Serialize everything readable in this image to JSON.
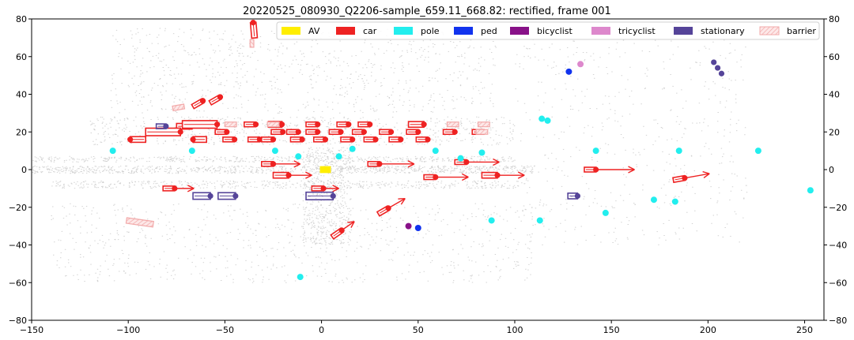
{
  "chart_data": {
    "type": "scatter",
    "title": "20220525_080930_Q2206-sample_659.11_668.82: rectified, frame 001",
    "xlabel": "",
    "ylabel": "",
    "xlim": [
      -150,
      260
    ],
    "ylim": [
      -80,
      80
    ],
    "xticks": [
      "−150",
      "−100",
      "−50",
      "0",
      "50",
      "100",
      "150",
      "200",
      "250"
    ],
    "yticks": [
      "80",
      "60",
      "40",
      "20",
      "0",
      "−20",
      "−40",
      "−60",
      "−80"
    ],
    "grid": false,
    "legend_position": "top-right",
    "colors": {
      "AV": "#ffee00",
      "car": "#ee2222",
      "pole": "#22eeee",
      "ped": "#1133ee",
      "bicyclist": "#881188",
      "tricyclist": "#dd88cc",
      "stationary": "#554499",
      "barrier": "#f2aaaa"
    },
    "legend": [
      {
        "name": "AV",
        "color": "#ffee00",
        "style": "solid"
      },
      {
        "name": "car",
        "color": "#ee2222",
        "style": "solid"
      },
      {
        "name": "pole",
        "color": "#22eeee",
        "style": "solid"
      },
      {
        "name": "ped",
        "color": "#1133ee",
        "style": "solid"
      },
      {
        "name": "bicyclist",
        "color": "#881188",
        "style": "solid"
      },
      {
        "name": "tricyclist",
        "color": "#dd88cc",
        "style": "solid"
      },
      {
        "name": "stationary",
        "color": "#554499",
        "style": "solid"
      },
      {
        "name": "barrier",
        "color": "#f2aaaa",
        "style": "hatched"
      }
    ],
    "series": [
      {
        "name": "AV",
        "boxes": [
          {
            "x": 2,
            "y": 0,
            "length": 5,
            "width": 3,
            "heading": 0
          }
        ]
      },
      {
        "name": "car",
        "boxes": [
          {
            "x": -35,
            "y": 74,
            "length": 8,
            "width": 3,
            "heading": 95,
            "arrow": 0
          },
          {
            "x": -55,
            "y": 37,
            "length": 6,
            "width": 2.5,
            "heading": 30,
            "arrow": 0
          },
          {
            "x": -64,
            "y": 35,
            "length": 6,
            "width": 2.5,
            "heading": 30,
            "arrow": 0
          },
          {
            "x": -71,
            "y": 23,
            "length": 8,
            "width": 3,
            "heading": 0,
            "arrow": 0
          },
          {
            "x": -63,
            "y": 24,
            "length": 18,
            "width": 4,
            "heading": 0,
            "arrow": 0
          },
          {
            "x": -82,
            "y": 20,
            "length": 18,
            "width": 4,
            "heading": 0,
            "arrow": 0
          },
          {
            "x": -95,
            "y": 16,
            "length": 8,
            "width": 3,
            "heading": 180,
            "arrow": 0
          },
          {
            "x": -63,
            "y": 16,
            "length": 7,
            "width": 3,
            "heading": 180,
            "arrow": 0
          },
          {
            "x": -48,
            "y": 16,
            "length": 6,
            "width": 2.5,
            "heading": 0,
            "arrow": 0
          },
          {
            "x": -52,
            "y": 20,
            "length": 6,
            "width": 2.5,
            "heading": 0,
            "arrow": 0
          },
          {
            "x": -37,
            "y": 24,
            "length": 6,
            "width": 2.5,
            "heading": 0,
            "arrow": 0
          },
          {
            "x": -35,
            "y": 16,
            "length": 6,
            "width": 2.5,
            "heading": 0,
            "arrow": 0
          },
          {
            "x": -24,
            "y": 24,
            "length": 7,
            "width": 3,
            "heading": 0,
            "arrow": 0
          },
          {
            "x": -23,
            "y": 20,
            "length": 6,
            "width": 2.5,
            "heading": 0,
            "arrow": 0
          },
          {
            "x": -28,
            "y": 16,
            "length": 6,
            "width": 2.5,
            "heading": 0,
            "arrow": 0
          },
          {
            "x": -15,
            "y": 20,
            "length": 6,
            "width": 2.5,
            "heading": 0,
            "arrow": 0
          },
          {
            "x": -13,
            "y": 16,
            "length": 6,
            "width": 2.5,
            "heading": 0,
            "arrow": 0
          },
          {
            "x": -5,
            "y": 20,
            "length": 6,
            "width": 2.5,
            "heading": 0,
            "arrow": 0
          },
          {
            "x": -1,
            "y": 16,
            "length": 6,
            "width": 2.5,
            "heading": 0,
            "arrow": 0
          },
          {
            "x": -5,
            "y": 24,
            "length": 6,
            "width": 2.5,
            "heading": 0,
            "arrow": 0
          },
          {
            "x": 7,
            "y": 20,
            "length": 6,
            "width": 2.5,
            "heading": 0,
            "arrow": 0
          },
          {
            "x": 11,
            "y": 24,
            "length": 6,
            "width": 2.5,
            "heading": 0,
            "arrow": 0
          },
          {
            "x": 13,
            "y": 16,
            "length": 6,
            "width": 2.5,
            "heading": 0,
            "arrow": 0
          },
          {
            "x": 19,
            "y": 20,
            "length": 6,
            "width": 2.5,
            "heading": 0,
            "arrow": 0
          },
          {
            "x": 22,
            "y": 24,
            "length": 6,
            "width": 2.5,
            "heading": 0,
            "arrow": 0
          },
          {
            "x": 25,
            "y": 16,
            "length": 6,
            "width": 2.5,
            "heading": 0,
            "arrow": 0
          },
          {
            "x": 33,
            "y": 20,
            "length": 6,
            "width": 2.5,
            "heading": 0,
            "arrow": 0
          },
          {
            "x": 38,
            "y": 16,
            "length": 6,
            "width": 2.5,
            "heading": 0,
            "arrow": 0
          },
          {
            "x": 47,
            "y": 20,
            "length": 6,
            "width": 2.5,
            "heading": 0,
            "arrow": 0
          },
          {
            "x": 49,
            "y": 24,
            "length": 8,
            "width": 3,
            "heading": 0,
            "arrow": 0
          },
          {
            "x": 52,
            "y": 16,
            "length": 6,
            "width": 2.5,
            "heading": 0,
            "arrow": 0
          },
          {
            "x": 66,
            "y": 20,
            "length": 6,
            "width": 2.5,
            "heading": 0,
            "arrow": 0
          },
          {
            "x": 81,
            "y": 20,
            "length": 6,
            "width": 2.5,
            "heading": 0,
            "arrow": 0
          },
          {
            "x": -28,
            "y": 3,
            "length": 6,
            "width": 2.5,
            "heading": 0,
            "arrow": 14
          },
          {
            "x": -21,
            "y": -3,
            "length": 8,
            "width": 3,
            "heading": 0,
            "arrow": 12
          },
          {
            "x": 27,
            "y": 3,
            "length": 6,
            "width": 2.5,
            "heading": 0,
            "arrow": 18
          },
          {
            "x": 56,
            "y": -4,
            "length": 6,
            "width": 2.5,
            "heading": 0,
            "arrow": 17
          },
          {
            "x": 72,
            "y": 4,
            "length": 6,
            "width": 2.5,
            "heading": 0,
            "arrow": 17
          },
          {
            "x": 87,
            "y": -3,
            "length": 8,
            "width": 3,
            "heading": 0,
            "arrow": 14
          },
          {
            "x": 139,
            "y": 0,
            "length": 6,
            "width": 2.5,
            "heading": 0,
            "arrow": 20
          },
          {
            "x": 185,
            "y": -5,
            "length": 6,
            "width": 2.5,
            "heading": 10,
            "arrow": 13
          },
          {
            "x": -79,
            "y": -10,
            "length": 6,
            "width": 2.5,
            "heading": 0,
            "arrow": 10
          },
          {
            "x": -2,
            "y": -10,
            "length": 6,
            "width": 2.5,
            "heading": 0,
            "arrow": 8
          },
          {
            "x": 32,
            "y": -22,
            "length": 6,
            "width": 2.5,
            "heading": 30,
            "arrow": 10
          },
          {
            "x": 8,
            "y": -34,
            "length": 6,
            "width": 2.5,
            "heading": 35,
            "arrow": 8
          }
        ]
      },
      {
        "name": "pole",
        "points": [
          [
            -108,
            10
          ],
          [
            -67,
            10
          ],
          [
            -24,
            10
          ],
          [
            -12,
            7
          ],
          [
            9,
            7
          ],
          [
            16,
            11
          ],
          [
            59,
            10
          ],
          [
            72,
            6
          ],
          [
            83,
            9
          ],
          [
            114,
            27
          ],
          [
            117,
            26
          ],
          [
            142,
            10
          ],
          [
            185,
            10
          ],
          [
            226,
            10
          ],
          [
            253,
            -11
          ],
          [
            113,
            -27
          ],
          [
            88,
            -27
          ],
          [
            147,
            -23
          ],
          [
            172,
            -16
          ],
          [
            183,
            -17
          ],
          [
            -11,
            -57
          ]
        ]
      },
      {
        "name": "ped",
        "points": [
          [
            50,
            -31
          ],
          [
            128,
            52
          ]
        ]
      },
      {
        "name": "bicyclist",
        "points": [
          [
            45,
            -30
          ]
        ]
      },
      {
        "name": "tricyclist",
        "points": [
          [
            134,
            56
          ]
        ]
      },
      {
        "name": "stationary",
        "boxes": [
          {
            "x": -83,
            "y": 23,
            "length": 5,
            "width": 2.5,
            "heading": 0
          },
          {
            "x": -62,
            "y": -14,
            "length": 9,
            "width": 3.5,
            "heading": 0
          },
          {
            "x": -49,
            "y": -14,
            "length": 9,
            "width": 3.5,
            "heading": 0
          },
          {
            "x": -1,
            "y": -14,
            "length": 14,
            "width": 4,
            "heading": 0
          },
          {
            "x": 130,
            "y": -14,
            "length": 5,
            "width": 3,
            "heading": 0
          }
        ],
        "points": [
          [
            203,
            57
          ],
          [
            205,
            54
          ],
          [
            207,
            51
          ]
        ]
      },
      {
        "name": "barrier",
        "boxes": [
          {
            "x": -74,
            "y": 33,
            "length": 6,
            "width": 2.5,
            "heading": 10
          },
          {
            "x": -47,
            "y": 24,
            "length": 6,
            "width": 2.5,
            "heading": 0
          },
          {
            "x": -25,
            "y": 24,
            "length": 6,
            "width": 2.5,
            "heading": 0
          },
          {
            "x": 68,
            "y": 24,
            "length": 6,
            "width": 2.5,
            "heading": 0
          },
          {
            "x": 84,
            "y": 24,
            "length": 6,
            "width": 2.5,
            "heading": 0
          },
          {
            "x": 83,
            "y": 20,
            "length": 6,
            "width": 2.5,
            "heading": 0
          },
          {
            "x": -94,
            "y": -28,
            "length": 14,
            "width": 3,
            "heading": -8
          },
          {
            "x": -36,
            "y": 67,
            "length": 4,
            "width": 2,
            "heading": 90
          }
        ]
      }
    ]
  }
}
